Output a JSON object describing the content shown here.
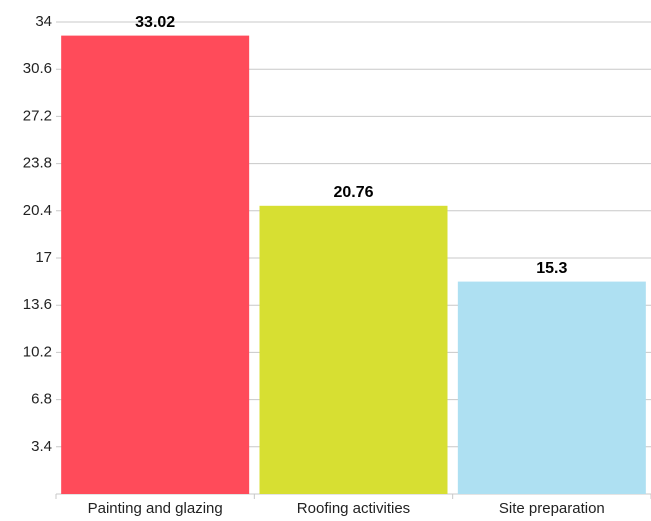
{
  "chart_data": {
    "type": "bar",
    "categories": [
      "Painting and glazing",
      "Roofing activities",
      "Site preparation"
    ],
    "values": [
      33.02,
      20.76,
      15.3
    ],
    "colors": [
      "#ff4b5a",
      "#d7df32",
      "#aee0f2"
    ],
    "ylim": [
      0,
      34
    ],
    "yticks": [
      3.4,
      6.8,
      10.2,
      13.6,
      17,
      20.4,
      23.8,
      27.2,
      30.6,
      34
    ],
    "grid": true
  }
}
